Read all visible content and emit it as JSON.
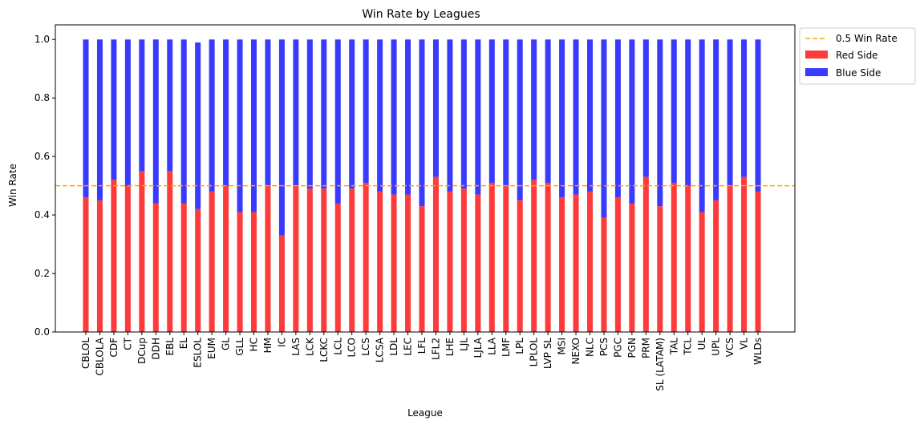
{
  "chart_data": {
    "type": "bar",
    "stacked": true,
    "title": "Win Rate by Leagues",
    "xlabel": "League",
    "ylabel": "Win Rate",
    "ylim": [
      0,
      1.05
    ],
    "yticks": [
      "0.0",
      "0.2",
      "0.4",
      "0.6",
      "0.8",
      "1.0"
    ],
    "ytick_values": [
      0,
      0.2,
      0.4,
      0.6,
      0.8,
      1.0
    ],
    "grid": false,
    "legend_position": "outside-top-right",
    "categories": [
      "CBLOL",
      "CBLOLA",
      "CDF",
      "CT",
      "DCup",
      "DDH",
      "EBL",
      "EL",
      "ESLOL",
      "EUM",
      "GL",
      "GLL",
      "HC",
      "HM",
      "IC",
      "LAS",
      "LCK",
      "LCKC",
      "LCL",
      "LCO",
      "LCS",
      "LCSA",
      "LDL",
      "LEC",
      "LFL",
      "LFL2",
      "LHE",
      "LJL",
      "LJLA",
      "LLA",
      "LMF",
      "LPL",
      "LPLOL",
      "LVP SL",
      "MSI",
      "NEXO",
      "NLC",
      "PCS",
      "PGC",
      "PGN",
      "PRM",
      "SL (LATAM)",
      "TAL",
      "TCL",
      "UL",
      "UPL",
      "VCS",
      "VL",
      "WLDs"
    ],
    "series": [
      {
        "name": "Red Side",
        "color": "#ff3a3a",
        "values": [
          0.46,
          0.45,
          0.52,
          0.5,
          0.55,
          0.44,
          0.55,
          0.44,
          0.42,
          0.48,
          0.5,
          0.41,
          0.41,
          0.5,
          0.33,
          0.5,
          0.49,
          0.49,
          0.44,
          0.49,
          0.51,
          0.48,
          0.47,
          0.47,
          0.43,
          0.53,
          0.48,
          0.49,
          0.47,
          0.51,
          0.5,
          0.45,
          0.52,
          0.51,
          0.46,
          0.47,
          0.48,
          0.39,
          0.46,
          0.44,
          0.53,
          0.43,
          0.51,
          0.5,
          0.41,
          0.45,
          0.5,
          0.53,
          0.48
        ]
      },
      {
        "name": "Blue Side",
        "color": "#3a3aff",
        "values": [
          0.54,
          0.55,
          0.48,
          0.5,
          0.45,
          0.56,
          0.45,
          0.56,
          0.57,
          0.52,
          0.5,
          0.59,
          0.59,
          0.5,
          0.67,
          0.5,
          0.51,
          0.51,
          0.56,
          0.51,
          0.49,
          0.52,
          0.53,
          0.53,
          0.57,
          0.47,
          0.52,
          0.51,
          0.53,
          0.49,
          0.5,
          0.55,
          0.48,
          0.49,
          0.54,
          0.53,
          0.52,
          0.61,
          0.54,
          0.56,
          0.47,
          0.57,
          0.49,
          0.5,
          0.59,
          0.55,
          0.5,
          0.47,
          0.52
        ]
      }
    ],
    "reference_line": {
      "name": "0.5 Win Rate",
      "value": 0.5,
      "color": "#ffa500",
      "style": "dashed"
    }
  }
}
